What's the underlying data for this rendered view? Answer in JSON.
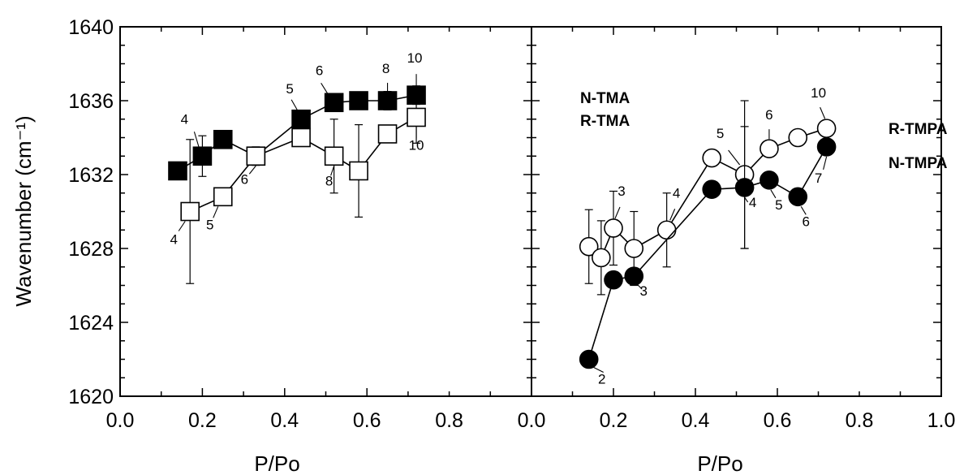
{
  "chart_data": [
    {
      "type": "scatter",
      "panel": "left",
      "xlabel": "P/Po",
      "ylabel": "Wavenumber (cm⁻¹)",
      "xlim": [
        0.0,
        1.0
      ],
      "ylim": [
        1620,
        1640
      ],
      "xticks": [
        "0.0",
        "0.2",
        "0.4",
        "0.6",
        "0.8"
      ],
      "yticks": [
        "1620",
        "1624",
        "1628",
        "1632",
        "1636",
        "1640"
      ],
      "grid": false,
      "series": [
        {
          "name": "N-TMA",
          "marker": "filled-square",
          "x": [
            0.14,
            0.2,
            0.25,
            0.33,
            0.44,
            0.52,
            0.58,
            0.65,
            0.72
          ],
          "y": [
            1632.2,
            1633.0,
            1633.9,
            1633.0,
            1635.0,
            1635.9,
            1636.0,
            1636.0,
            1636.3
          ],
          "yerr": [
            0,
            1.1,
            0,
            0,
            0,
            0,
            0,
            0.5,
            0.5
          ],
          "point_labels": [
            "",
            "4",
            "",
            "",
            "5",
            "6",
            "",
            "8",
            "10"
          ]
        },
        {
          "name": "R-TMA",
          "marker": "open-square",
          "x": [
            0.17,
            0.25,
            0.33,
            0.44,
            0.52,
            0.58,
            0.65,
            0.72
          ],
          "y": [
            1630.0,
            1630.8,
            1633.0,
            1634.0,
            1633.0,
            1632.2,
            1634.2,
            1635.1
          ],
          "yerr": [
            3.9,
            0,
            0.5,
            0,
            2.0,
            2.5,
            0,
            1.4
          ],
          "point_labels": [
            "4",
            "5",
            "6",
            "",
            "8",
            "",
            "",
            "10"
          ]
        }
      ]
    },
    {
      "type": "scatter",
      "panel": "right",
      "xlabel": "P/Po",
      "ylabel": "",
      "xlim": [
        0.0,
        1.0
      ],
      "ylim": [
        1620,
        1640
      ],
      "xticks": [
        "0.0",
        "0.2",
        "0.4",
        "0.6",
        "0.8",
        "1.0"
      ],
      "grid": false,
      "series": [
        {
          "name": "R-TMPA",
          "marker": "open-circle",
          "x": [
            0.14,
            0.17,
            0.2,
            0.25,
            0.33,
            0.44,
            0.52,
            0.58,
            0.65,
            0.72
          ],
          "y": [
            1628.1,
            1627.5,
            1629.1,
            1628.0,
            1629.0,
            1632.9,
            1632.0,
            1633.4,
            1634.0,
            1634.5
          ],
          "yerr": [
            2.0,
            2.0,
            2.0,
            2.0,
            2.0,
            0,
            4.0,
            0,
            0,
            0
          ],
          "point_labels": [
            "",
            "",
            "3",
            "",
            "4",
            "",
            "5",
            "6",
            "",
            "10"
          ]
        },
        {
          "name": "N-TMPA",
          "marker": "filled-circle",
          "x": [
            0.14,
            0.2,
            0.25,
            0.44,
            0.52,
            0.58,
            0.65,
            0.72
          ],
          "y": [
            1622.0,
            1626.3,
            1626.5,
            1631.2,
            1631.3,
            1631.7,
            1630.8,
            1633.5
          ],
          "yerr": [
            0,
            0,
            0,
            0,
            3.3,
            0,
            0,
            0
          ],
          "point_labels": [
            "2",
            "",
            "3",
            "",
            "4",
            "5",
            "6",
            "7"
          ]
        }
      ]
    }
  ]
}
